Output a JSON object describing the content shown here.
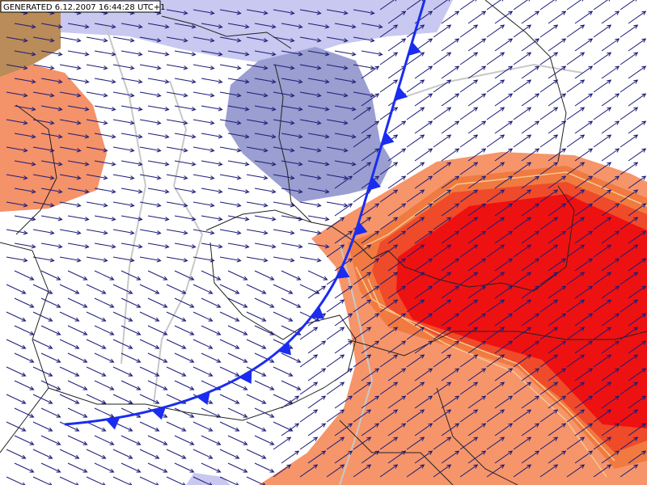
{
  "header": {
    "generated": "GENERATED 6.12.2007 16:44:28 UTC+1"
  }
}
